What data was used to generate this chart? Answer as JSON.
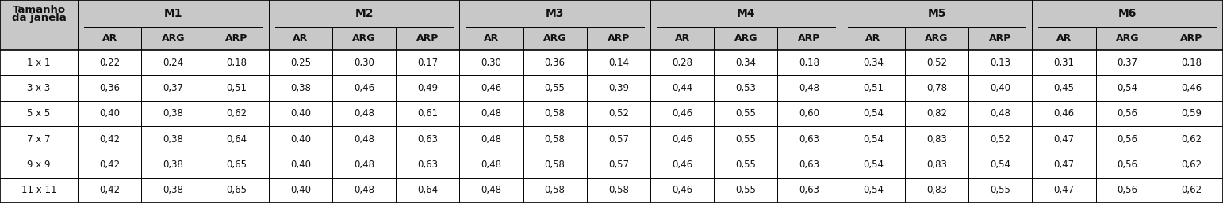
{
  "group_headers": [
    "M1",
    "M2",
    "M3",
    "M4",
    "M5",
    "M6"
  ],
  "sub_headers": [
    "AR",
    "ARG",
    "ARP"
  ],
  "col0_label_line1": "Tamanho",
  "col0_label_line2": "da janela",
  "rows": [
    [
      "1 x 1",
      "0,22",
      "0,24",
      "0,18",
      "0,25",
      "0,30",
      "0,17",
      "0,30",
      "0,36",
      "0,14",
      "0,28",
      "0,34",
      "0,18",
      "0,34",
      "0,52",
      "0,13",
      "0,31",
      "0,37",
      "0,18"
    ],
    [
      "3 x 3",
      "0,36",
      "0,37",
      "0,51",
      "0,38",
      "0,46",
      "0,49",
      "0,46",
      "0,55",
      "0,39",
      "0,44",
      "0,53",
      "0,48",
      "0,51",
      "0,78",
      "0,40",
      "0,45",
      "0,54",
      "0,46"
    ],
    [
      "5 x 5",
      "0,40",
      "0,38",
      "0,62",
      "0,40",
      "0,48",
      "0,61",
      "0,48",
      "0,58",
      "0,52",
      "0,46",
      "0,55",
      "0,60",
      "0,54",
      "0,82",
      "0,48",
      "0,46",
      "0,56",
      "0,59"
    ],
    [
      "7 x 7",
      "0,42",
      "0,38",
      "0,64",
      "0,40",
      "0,48",
      "0,63",
      "0,48",
      "0,58",
      "0,57",
      "0,46",
      "0,55",
      "0,63",
      "0,54",
      "0,83",
      "0,52",
      "0,47",
      "0,56",
      "0,62"
    ],
    [
      "9 x 9",
      "0,42",
      "0,38",
      "0,65",
      "0,40",
      "0,48",
      "0,63",
      "0,48",
      "0,58",
      "0,57",
      "0,46",
      "0,55",
      "0,63",
      "0,54",
      "0,83",
      "0,54",
      "0,47",
      "0,56",
      "0,62"
    ],
    [
      "11 x 11",
      "0,42",
      "0,38",
      "0,65",
      "0,40",
      "0,48",
      "0,64",
      "0,48",
      "0,58",
      "0,58",
      "0,46",
      "0,55",
      "0,63",
      "0,54",
      "0,83",
      "0,55",
      "0,47",
      "0,56",
      "0,62"
    ]
  ],
  "header_bg": "#c8c8c8",
  "subheader_bg": "#c8c8c8",
  "white": "#ffffff",
  "text_color": "#111111",
  "line_color": "#000000",
  "figw": 15.42,
  "figh": 2.57,
  "dpi": 100
}
